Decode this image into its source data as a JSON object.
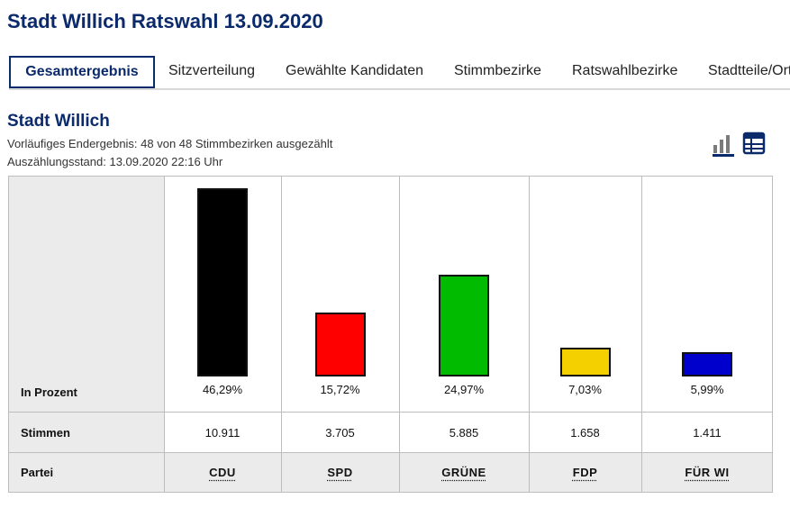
{
  "page": {
    "title": "Stadt Willich Ratswahl 13.09.2020"
  },
  "tabs": [
    "Gesamtergebnis",
    "Sitzverteilung",
    "Gewählte Kandidaten",
    "Stimmbezirke",
    "Ratswahlbezirke",
    "Stadtteile/Ort"
  ],
  "section": {
    "title": "Stadt Willich",
    "status": "Vorläufiges Endergebnis: 48 von 48 Stimmbezirken ausgezählt",
    "timestamp": "Auszählungsstand: 13.09.2020 22:16 Uhr"
  },
  "view_icons": [
    "bar-chart-icon",
    "table-icon"
  ],
  "table": {
    "row_labels": {
      "percent": "In Prozent",
      "votes": "Stimmen",
      "party": "Partei"
    }
  },
  "chart_data": {
    "type": "bar",
    "categories": [
      "CDU",
      "SPD",
      "GRÜNE",
      "FDP",
      "FÜR WI"
    ],
    "values": [
      46.29,
      15.72,
      24.97,
      7.03,
      5.99
    ],
    "value_labels": [
      "46,29%",
      "15,72%",
      "24,97%",
      "7,03%",
      "5,99%"
    ],
    "votes": [
      "10.911",
      "3.705",
      "5.885",
      "1.658",
      "1.411"
    ],
    "colors": [
      "#000000",
      "#ff0000",
      "#00bb00",
      "#f5d000",
      "#0000cc"
    ],
    "ylim": [
      0,
      46.29
    ]
  }
}
